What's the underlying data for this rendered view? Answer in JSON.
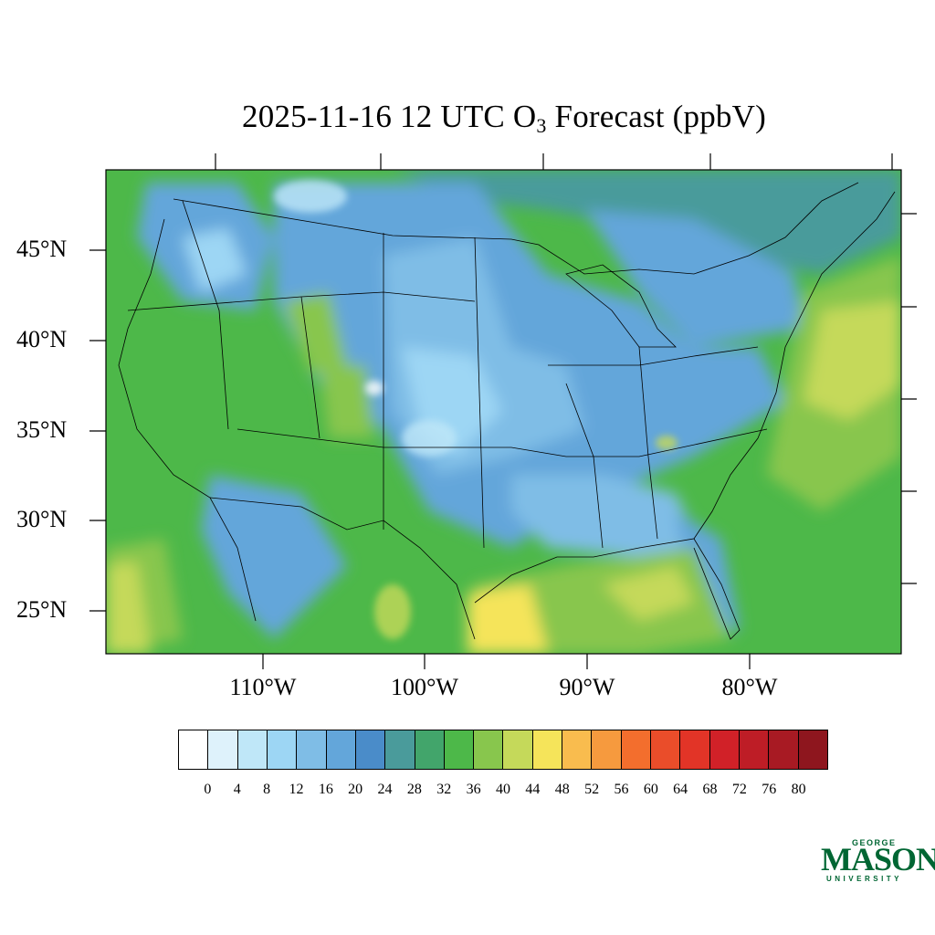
{
  "title": {
    "prefix": "2025-11-16 12 UTC O",
    "subscript": "3",
    "suffix": " Forecast (ppbV)"
  },
  "lat_labels": [
    "45°N",
    "40°N",
    "35°N",
    "30°N",
    "25°N"
  ],
  "lon_labels": [
    "110°W",
    "100°W",
    "90°W",
    "80°W"
  ],
  "colorbar": {
    "colors": [
      "#ffffff",
      "#def2fb",
      "#bfe7f8",
      "#9dd6f4",
      "#7fbde6",
      "#63a6da",
      "#4a8cc9",
      "#4a9b9b",
      "#42a56b",
      "#4db849",
      "#88c64d",
      "#c5d95a",
      "#f5e45a",
      "#f9bc4e",
      "#f69a3e",
      "#f36e2d",
      "#ea4d2a",
      "#e23427",
      "#d12128",
      "#be1d26",
      "#a81a23",
      "#8e161e"
    ],
    "ticks": [
      "0",
      "4",
      "8",
      "12",
      "16",
      "20",
      "24",
      "28",
      "32",
      "36",
      "40",
      "44",
      "48",
      "52",
      "56",
      "60",
      "64",
      "68",
      "72",
      "76",
      "80"
    ]
  },
  "logo": {
    "line1": "GEORGE",
    "line2": "MASON",
    "line3": "UNIVERSITY"
  }
}
